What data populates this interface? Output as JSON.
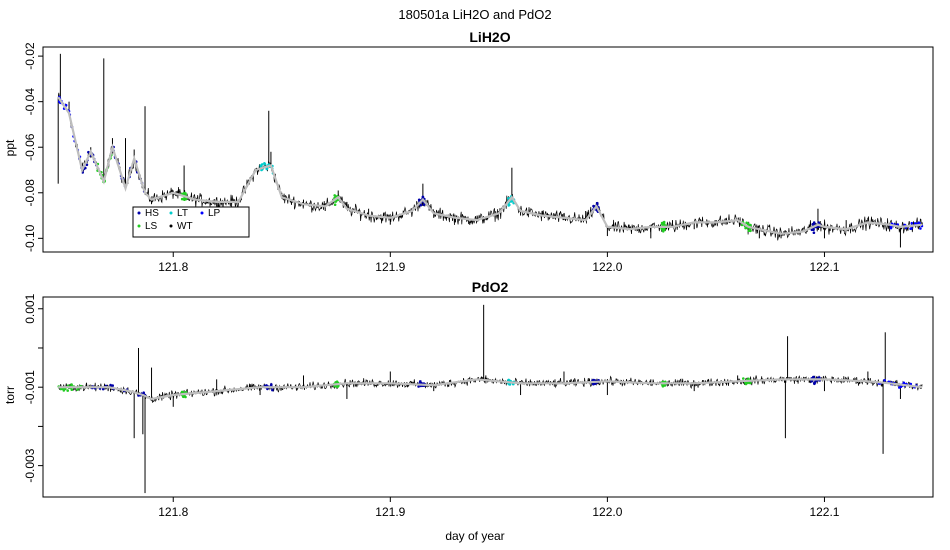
{
  "figure_title": "180501a   LiH2O and PdO2",
  "xlabel": "day of year",
  "chart_data": [
    {
      "type": "line",
      "title": "LiH2O",
      "ylabel": "ppt",
      "xlim": [
        121.74,
        122.15
      ],
      "ylim": [
        -0.106,
        -0.016
      ],
      "x_ticks": [
        121.8,
        121.9,
        122.0,
        122.1
      ],
      "x_tick_labels": [
        "121.8",
        "121.9",
        "122.0",
        "122.1"
      ],
      "y_ticks": [
        -0.02,
        -0.04,
        -0.06,
        -0.08,
        -0.1
      ],
      "y_tick_labels": [
        "-0.02",
        "-0.04",
        "-0.06",
        "-0.08",
        "-0.10"
      ],
      "colors": {
        "raw": "#000000",
        "smooth": "#bebebe",
        "HS": "#0000aa",
        "LS": "#22cc22",
        "LT": "#00cccc",
        "WT": "#000000",
        "LP": "#0000ff"
      },
      "legend": {
        "placement": "bottom-left",
        "entries": [
          {
            "code": "HS",
            "color": "#0000aa"
          },
          {
            "code": "LT",
            "color": "#00cccc"
          },
          {
            "code": "LP",
            "color": "#0000ff"
          },
          {
            "code": "LS",
            "color": "#22cc22"
          },
          {
            "code": "WT",
            "color": "#000000"
          }
        ]
      },
      "series": [
        {
          "role": "smoothed",
          "x": [
            121.747,
            121.752,
            121.758,
            121.762,
            121.768,
            121.772,
            121.778,
            121.782,
            121.787,
            121.79,
            121.8,
            121.81,
            121.82,
            121.83,
            121.838,
            121.845,
            121.85,
            121.86,
            121.87,
            121.876,
            121.88,
            121.89,
            121.9,
            121.91,
            121.915,
            121.92,
            121.93,
            121.94,
            121.95,
            121.956,
            121.96,
            121.97,
            121.98,
            121.99,
            121.995,
            122.0,
            122.01,
            122.02,
            122.03,
            122.04,
            122.05,
            122.06,
            122.065,
            122.07,
            122.08,
            122.09,
            122.097,
            122.1,
            122.11,
            122.12,
            122.13,
            122.135,
            122.145
          ],
          "y": [
            -0.038,
            -0.045,
            -0.07,
            -0.062,
            -0.075,
            -0.06,
            -0.078,
            -0.065,
            -0.08,
            -0.083,
            -0.08,
            -0.083,
            -0.084,
            -0.084,
            -0.07,
            -0.068,
            -0.082,
            -0.085,
            -0.086,
            -0.082,
            -0.087,
            -0.09,
            -0.091,
            -0.088,
            -0.083,
            -0.089,
            -0.091,
            -0.092,
            -0.089,
            -0.082,
            -0.088,
            -0.09,
            -0.091,
            -0.092,
            -0.086,
            -0.095,
            -0.096,
            -0.095,
            -0.095,
            -0.093,
            -0.093,
            -0.092,
            -0.095,
            -0.096,
            -0.098,
            -0.097,
            -0.094,
            -0.095,
            -0.096,
            -0.093,
            -0.094,
            -0.095,
            -0.094
          ]
        },
        {
          "role": "raw",
          "x": [
            121.747,
            121.748,
            121.752,
            121.755,
            121.758,
            121.762,
            121.767,
            121.768,
            121.772,
            121.777,
            121.778,
            121.782,
            121.786,
            121.787,
            121.79,
            121.8,
            121.805,
            121.81,
            121.82,
            121.83,
            121.838,
            121.844,
            121.845,
            121.85,
            121.86,
            121.87,
            121.876,
            121.88,
            121.89,
            121.9,
            121.91,
            121.915,
            121.92,
            121.93,
            121.94,
            121.95,
            121.956,
            121.96,
            121.97,
            121.98,
            121.99,
            121.995,
            122.0,
            122.01,
            122.02,
            122.03,
            122.04,
            122.05,
            122.06,
            122.065,
            122.07,
            122.08,
            122.09,
            122.097,
            122.1,
            122.11,
            122.12,
            122.13,
            122.135,
            122.145
          ],
          "y": [
            -0.076,
            -0.019,
            -0.04,
            -0.06,
            -0.07,
            -0.06,
            -0.074,
            -0.021,
            -0.056,
            -0.076,
            -0.056,
            -0.061,
            -0.078,
            -0.042,
            -0.085,
            -0.079,
            -0.068,
            -0.082,
            -0.086,
            -0.083,
            -0.07,
            -0.044,
            -0.062,
            -0.08,
            -0.083,
            -0.088,
            -0.079,
            -0.084,
            -0.087,
            -0.094,
            -0.09,
            -0.076,
            -0.091,
            -0.093,
            -0.09,
            -0.088,
            -0.069,
            -0.09,
            -0.088,
            -0.092,
            -0.088,
            -0.086,
            -0.099,
            -0.094,
            -0.1,
            -0.092,
            -0.096,
            -0.092,
            -0.093,
            -0.094,
            -0.1,
            -0.1,
            -0.096,
            -0.087,
            -0.1,
            -0.092,
            -0.091,
            -0.097,
            -0.104,
            -0.093
          ]
        }
      ]
    },
    {
      "type": "line",
      "title": "PdO2",
      "ylabel": "torr",
      "xlim": [
        121.74,
        122.15
      ],
      "ylim": [
        -0.0038,
        0.0013
      ],
      "x_ticks": [
        121.8,
        121.9,
        122.0,
        122.1
      ],
      "x_tick_labels": [
        "121.8",
        "121.9",
        "122.0",
        "122.1"
      ],
      "y_ticks": [
        0.001,
        -0.001,
        -0.003
      ],
      "y_tick_labels": [
        "0.001",
        "-0.001",
        "-0.003"
      ],
      "y_minor_ticks": [
        0,
        -0.002
      ],
      "series": [
        {
          "role": "smoothed",
          "x": [
            121.747,
            121.76,
            121.77,
            121.78,
            121.786,
            121.79,
            121.8,
            121.82,
            121.84,
            121.86,
            121.88,
            121.9,
            121.92,
            121.94,
            121.96,
            121.98,
            122.0,
            122.02,
            122.04,
            122.06,
            122.08,
            122.1,
            122.12,
            122.13,
            122.145
          ],
          "y": [
            -0.001,
            -0.001,
            -0.001,
            -0.0011,
            -0.0012,
            -0.0013,
            -0.0012,
            -0.0011,
            -0.001,
            -0.001,
            -0.0009,
            -0.0009,
            -0.00095,
            -0.0008,
            -0.0009,
            -0.0009,
            -0.00085,
            -0.0009,
            -0.0009,
            -0.00085,
            -0.0008,
            -0.0008,
            -0.00085,
            -0.0009,
            -0.001
          ]
        },
        {
          "role": "raw",
          "x": [
            121.747,
            121.76,
            121.77,
            121.782,
            121.784,
            121.786,
            121.787,
            121.79,
            121.8,
            121.82,
            121.84,
            121.86,
            121.88,
            121.9,
            121.92,
            121.943,
            121.944,
            121.96,
            121.98,
            122.0,
            122.02,
            122.04,
            122.06,
            122.082,
            122.083,
            122.1,
            122.12,
            122.127,
            122.128,
            122.135,
            122.145
          ],
          "y": [
            -0.001,
            -0.0009,
            -0.0011,
            -0.0023,
            0.0,
            -0.0022,
            -0.0037,
            -0.0005,
            -0.0015,
            -0.0008,
            -0.0012,
            -0.0007,
            -0.0013,
            -0.0006,
            -0.0011,
            0.0011,
            -0.0007,
            -0.0012,
            -0.0006,
            -0.0012,
            -0.0008,
            -0.0011,
            -0.0007,
            -0.0023,
            0.0003,
            -0.0011,
            -0.0006,
            -0.0027,
            0.0004,
            -0.0013,
            -0.001
          ]
        }
      ]
    }
  ]
}
